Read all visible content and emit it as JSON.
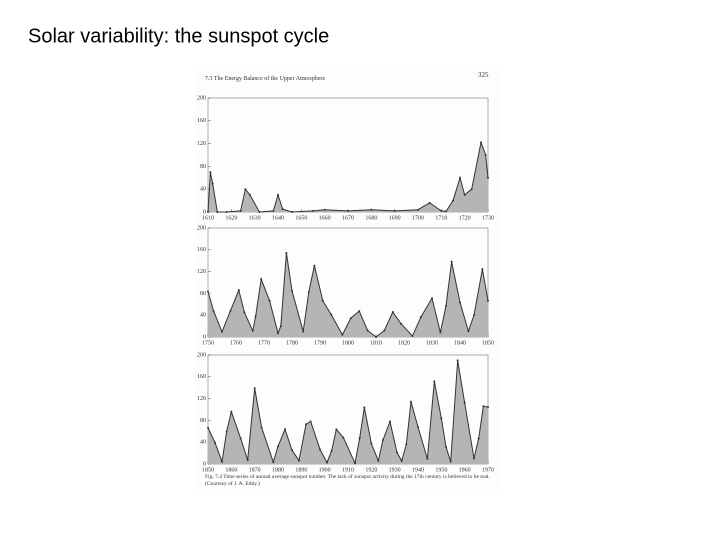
{
  "title": "Solar variability: the sunspot cycle",
  "page_header": "7.3 The Energy Balance of the Upper Atmosphere",
  "page_number": "325",
  "caption": "Fig. 7.4 Time series of annual average sunspot number. The lack of sunspot activity during the 17th century is believed to be real. (Courtesy of J. A. Eddy.)",
  "chart_data": [
    {
      "type": "area",
      "color": "#b5b5b5",
      "line_color": "#333333",
      "x": [
        1610,
        1611,
        1612,
        1614,
        1618,
        1624,
        1626,
        1628,
        1632,
        1638,
        1640,
        1642,
        1646,
        1655,
        1660,
        1670,
        1680,
        1690,
        1700,
        1705,
        1710,
        1712,
        1715,
        1718,
        1720,
        1723,
        1727,
        1729,
        1730
      ],
      "values": [
        0,
        70,
        50,
        0,
        0,
        2,
        40,
        30,
        0,
        2,
        30,
        5,
        0,
        2,
        4,
        2,
        4,
        2,
        4,
        16,
        2,
        1,
        20,
        60,
        30,
        40,
        122,
        100,
        60
      ],
      "xlim": [
        1610,
        1730
      ],
      "ylim": [
        0,
        200
      ],
      "xticks": [
        1610,
        1620,
        1630,
        1640,
        1650,
        1660,
        1670,
        1680,
        1690,
        1700,
        1710,
        1720,
        1730
      ],
      "yticks": [
        0,
        40,
        80,
        120,
        160,
        200
      ]
    },
    {
      "type": "area",
      "color": "#b5b5b5",
      "line_color": "#333333",
      "x": [
        1750,
        1752,
        1755,
        1758,
        1761,
        1763,
        1766,
        1767,
        1769,
        1772,
        1775,
        1776,
        1778,
        1780,
        1784,
        1786,
        1788,
        1791,
        1794,
        1798,
        1801,
        1804,
        1807,
        1810,
        1813,
        1816,
        1819,
        1823,
        1826,
        1830,
        1833,
        1835,
        1837,
        1840,
        1843,
        1845,
        1848,
        1850
      ],
      "values": [
        83.4,
        47.7,
        9.6,
        47.8,
        86,
        45.1,
        11.4,
        37.8,
        106.1,
        66.5,
        7,
        19.8,
        154.4,
        84.8,
        10.2,
        82.6,
        130.9,
        66.6,
        41,
        4.1,
        34.5,
        47.5,
        12.2,
        0,
        12.2,
        45.8,
        24.1,
        1.8,
        36.3,
        71,
        8.5,
        56.9,
        138.3,
        63.5,
        10.7,
        40.1,
        124.7,
        66.6
      ],
      "xlim": [
        1750,
        1850
      ],
      "ylim": [
        0,
        200
      ],
      "xticks": [
        1750,
        1760,
        1770,
        1780,
        1790,
        1800,
        1810,
        1820,
        1830,
        1840,
        1850
      ],
      "yticks": [
        0,
        40,
        80,
        120,
        160,
        200
      ]
    },
    {
      "type": "area",
      "color": "#b5b5b5",
      "line_color": "#333333",
      "x": [
        1850,
        1853,
        1856,
        1858,
        1860,
        1864,
        1867,
        1870,
        1873,
        1878,
        1880,
        1883,
        1886,
        1889,
        1892,
        1894,
        1898,
        1901,
        1903,
        1905,
        1908,
        1913,
        1915,
        1917,
        1920,
        1923,
        1925,
        1928,
        1931,
        1933,
        1935,
        1937,
        1940,
        1944,
        1947,
        1950,
        1952,
        1954,
        1957,
        1960,
        1964,
        1966,
        1968,
        1970
      ],
      "values": [
        66.6,
        39,
        4.3,
        59.7,
        95.8,
        47,
        7.3,
        139,
        66.6,
        3.4,
        32.3,
        63.7,
        25.4,
        6.3,
        73,
        78,
        26.7,
        2.7,
        24.4,
        63.5,
        48.5,
        1.4,
        47.4,
        103.9,
        37.6,
        5.8,
        44.3,
        77.8,
        21.2,
        5.7,
        36.1,
        114.4,
        67.8,
        9.6,
        151.6,
        83.9,
        31.5,
        4.4,
        190.2,
        112.3,
        10.2,
        47,
        105.9,
        104.5
      ],
      "xlim": [
        1850,
        1970
      ],
      "ylim": [
        0,
        200
      ],
      "xticks": [
        1850,
        1860,
        1870,
        1880,
        1890,
        1900,
        1910,
        1920,
        1930,
        1940,
        1950,
        1960,
        1970
      ],
      "yticks": [
        0,
        40,
        80,
        120,
        160,
        200
      ]
    }
  ]
}
